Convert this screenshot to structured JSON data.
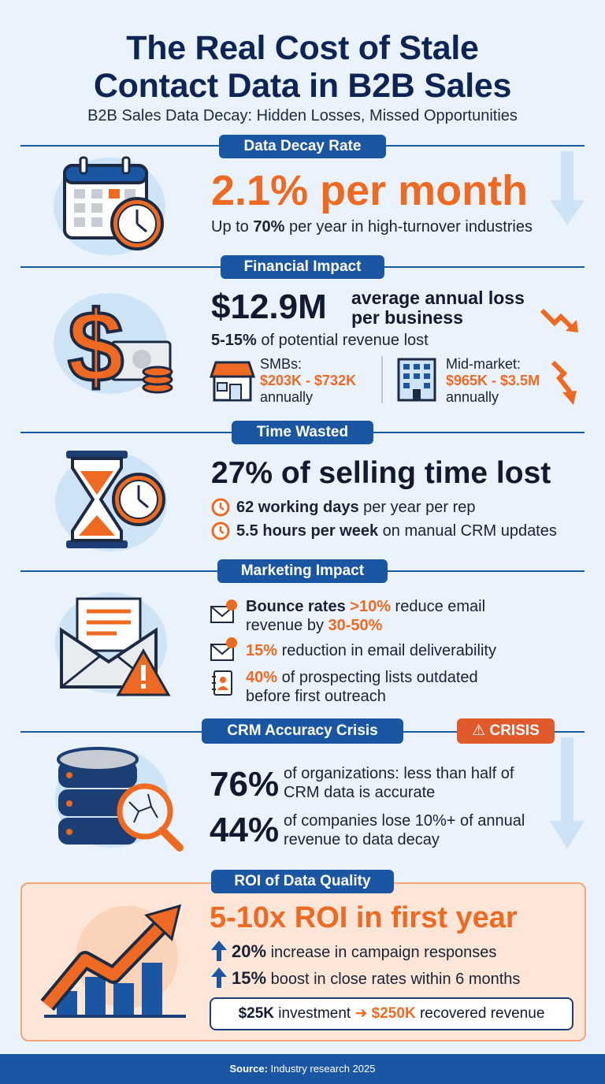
{
  "header": {
    "title_line1": "The Real Cost of Stale",
    "title_line2": "Contact Data in B2B Sales",
    "subtitle": "B2B Sales Data Decay: Hidden Losses, Missed Opportunities"
  },
  "colors": {
    "navy": "#0e2454",
    "blue": "#1b56a3",
    "orange": "#ee6a22",
    "light_bg": "#eaf3fb",
    "roi_bg": "#fde6d8"
  },
  "decay": {
    "label": "Data Decay Rate",
    "headline": "2.1% per month",
    "sub_prefix": "Up to ",
    "sub_bold": "70%",
    "sub_suffix": " per year in high-turnover industries",
    "icon": "calendar-clock-icon"
  },
  "financial": {
    "label": "Financial Impact",
    "big": "$12.9M",
    "big_desc_line1": "average annual loss",
    "big_desc_line2": "per business",
    "pct_bold": "5-15%",
    "pct_rest": " of potential revenue lost",
    "smb_label": "SMBs:",
    "smb_value": "$203K - $732K",
    "smb_period": "annually",
    "mid_label": "Mid-market:",
    "mid_value": "$965K - $3.5M",
    "mid_period": "annually",
    "icon": "dollar-money-icon"
  },
  "time": {
    "label": "Time Wasted",
    "headline": "27% of selling time lost",
    "item1_bold": "62 working days",
    "item1_rest": " per year per rep",
    "item2_bold": "5.5 hours per week",
    "item2_rest": " on manual CRM updates",
    "icon": "hourglass-clock-icon"
  },
  "marketing": {
    "label": "Marketing Impact",
    "item1_bold": "Bounce rates ",
    "item1_orange": ">10%",
    "item1_rest": " reduce email",
    "item1_line2_pre": "revenue by ",
    "item1_line2_orange": "30-50%",
    "item2_orange": "15%",
    "item2_rest": " reduction in email deliverability",
    "item3_orange": "40%",
    "item3_rest": " of prospecting lists outdated",
    "item3_line2": "before first outreach",
    "icon": "envelope-warning-icon"
  },
  "crm": {
    "label": "CRM Accuracy Crisis",
    "badge": "CRISIS",
    "stat1_big": "76%",
    "stat1_line1": "of organizations: less than half of",
    "stat1_line2": "CRM data is accurate",
    "stat2_big": "44%",
    "stat2_line1": "of companies lose 10%+ of annual",
    "stat2_line2": "revenue to data decay",
    "icon": "database-magnifier-icon"
  },
  "roi": {
    "label": "ROI of Data Quality",
    "headline": "5-10x ROI in first year",
    "item1_bold": "20%",
    "item1_rest": " increase in campaign responses",
    "item2_bold": "15%",
    "item2_rest": " boost in close rates within 6 months",
    "invest_left": "$25K",
    "invest_mid": " investment ",
    "invest_right": "$250K",
    "invest_rest": " recovered revenue",
    "icon": "growth-chart-icon"
  },
  "footer": {
    "source_label": "Source:",
    "source_text": " Industry research 2025"
  }
}
